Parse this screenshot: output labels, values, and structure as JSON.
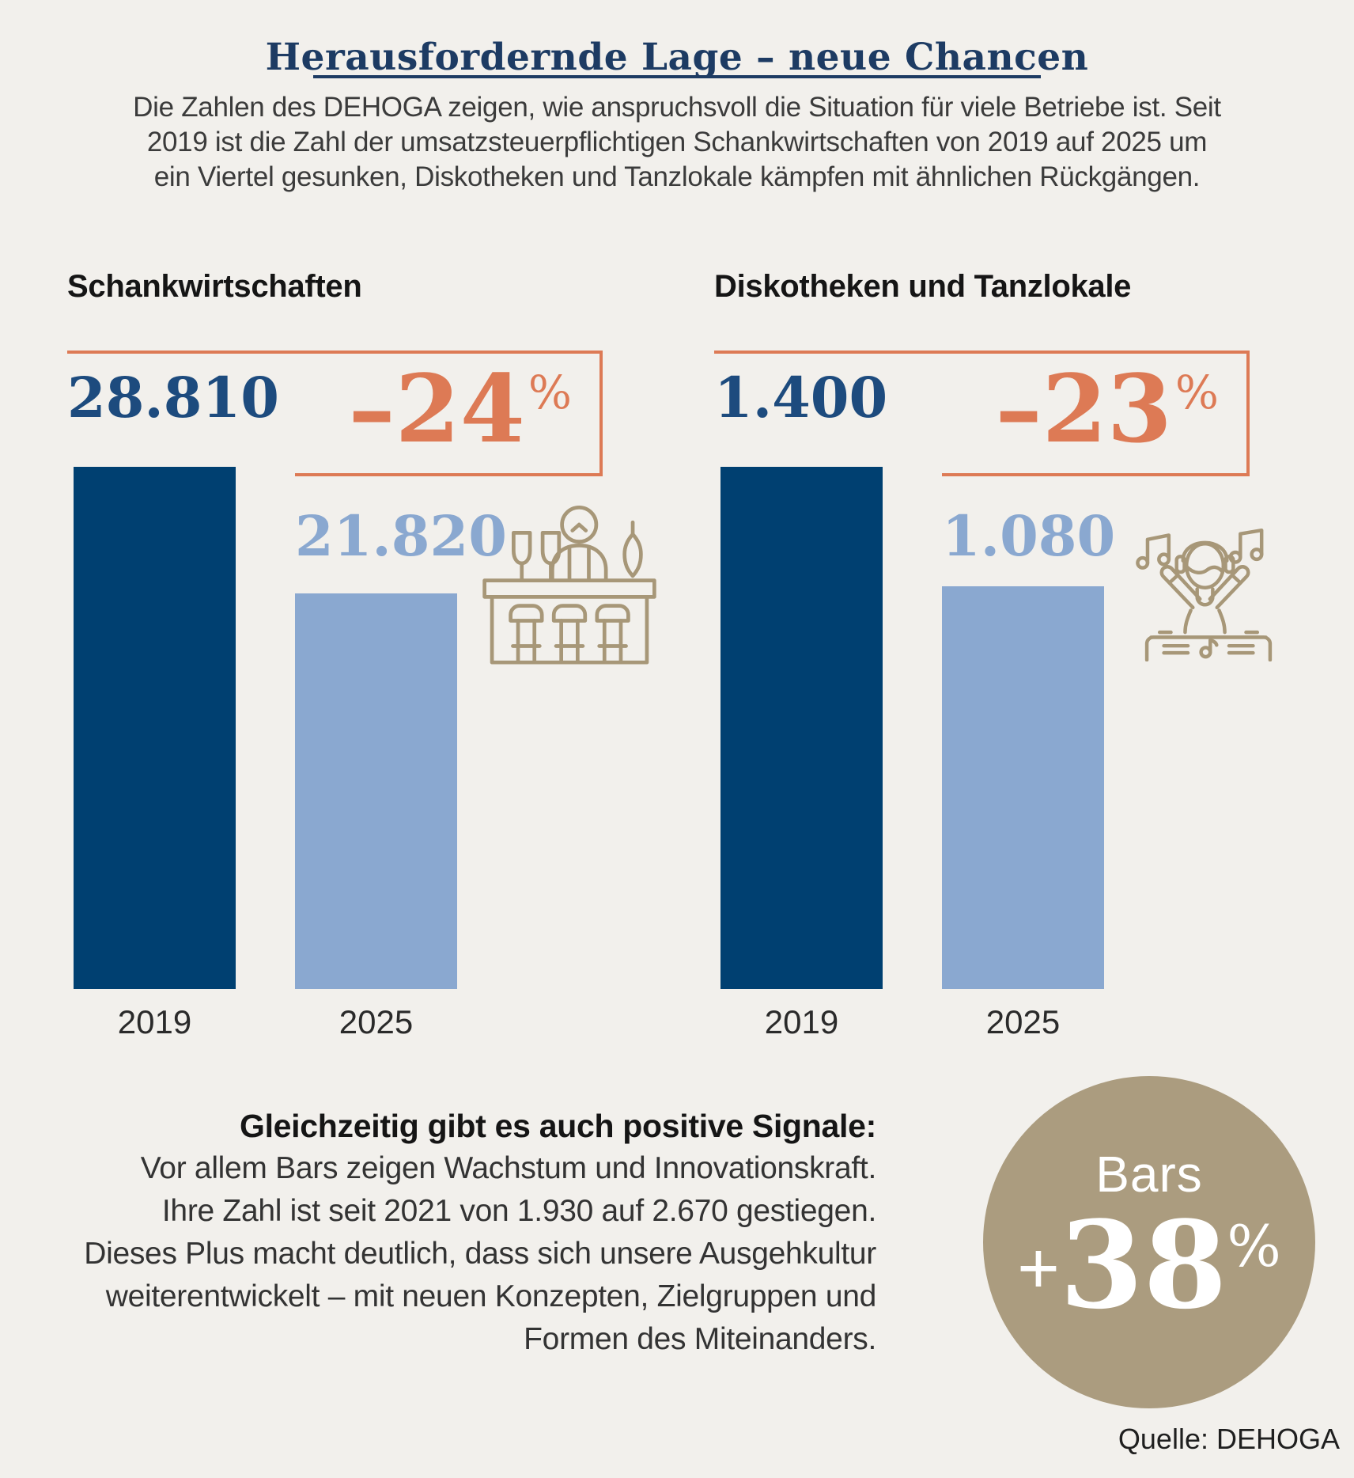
{
  "header": {
    "title": "Herausfordernde Lage – neue Chancen",
    "intro_lines": [
      "Die Zahlen des DEHOGA zeigen, wie anspruchsvoll die Situation für viele Betriebe ist. Seit",
      "2019 ist die Zahl der umsatzsteuerpflichtigen Schankwirtschaften von 2019 auf 2025 um",
      "ein Viertel gesunken, Diskotheken und Tanzlokale kämpfen mit ähnlichen Rückgängen."
    ]
  },
  "chart_data": [
    {
      "type": "bar",
      "title": "Schankwirtschaften",
      "categories": [
        "2019",
        "2025"
      ],
      "values": [
        28810,
        21820
      ],
      "value_labels": [
        "28.810",
        "21.820"
      ],
      "change_label": "–24",
      "change_percent": -24,
      "percent_sign": "%",
      "icon": "bar-counter-icon",
      "legend_position": "none",
      "grid": false
    },
    {
      "type": "bar",
      "title": "Diskotheken und Tanzlokale",
      "categories": [
        "2019",
        "2025"
      ],
      "values": [
        1400,
        1080
      ],
      "value_labels": [
        "1.400",
        "1.080"
      ],
      "change_label": "–23",
      "change_percent": -23,
      "percent_sign": "%",
      "icon": "dj-icon",
      "legend_position": "none",
      "grid": false
    }
  ],
  "positive": {
    "heading": "Gleichzeitig gibt es auch positive Signale:",
    "lines": [
      "Vor allem Bars zeigen Wachstum und Innovationskraft.",
      "Ihre Zahl ist seit 2021 von 1.930 auf 2.670 gestiegen.",
      "Dieses Plus macht deutlich, dass sich unsere Ausgehkultur",
      "weiterentwickelt – mit neuen Konzepten, Zielgruppen und",
      "Formen des Miteinanders."
    ],
    "badge": {
      "label": "Bars",
      "plus": "+",
      "value": "38",
      "suffix": "%"
    }
  },
  "source": "Quelle: DEHOGA",
  "colors": {
    "background": "#f2f0ec",
    "bar_2019": "#004071",
    "bar_2025": "#8aa8d0",
    "value_2019_text": "#1d4b7e",
    "value_2025_text": "#8aa8d0",
    "accent_orange": "#dd7a55",
    "title_navy": "#1d3b63",
    "icon_tan": "#a79778",
    "badge_tan": "#ab9c7f"
  }
}
